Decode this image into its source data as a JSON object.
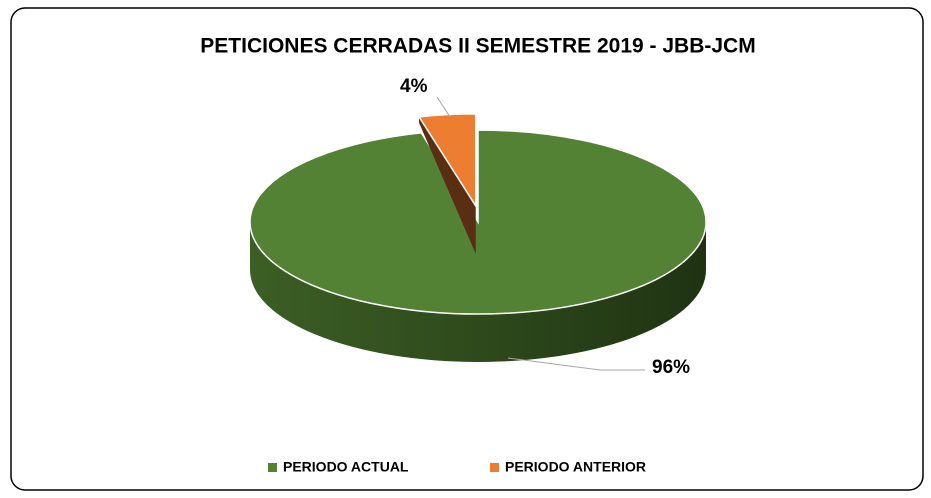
{
  "chart_data": {
    "type": "pie",
    "title": "PETICIONES CERRADAS II SEMESTRE 2019 - JBB-JCM",
    "categories": [
      "PERIODO ACTUAL",
      "PERIODO ANTERIOR"
    ],
    "values": [
      96,
      4
    ],
    "value_labels": [
      "96%",
      "4%"
    ],
    "colors": [
      "#548235",
      "#ed7d31"
    ],
    "legend": "bottom"
  }
}
